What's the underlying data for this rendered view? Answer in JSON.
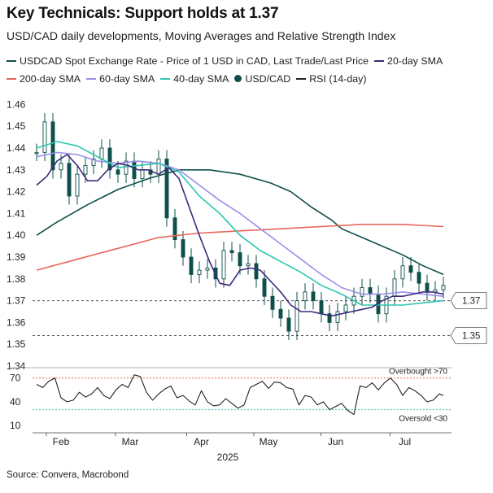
{
  "header": {
    "title": "Key Technicals: Support holds at 1.37",
    "subtitle": "USD/CAD daily developments, Moving Averages and Relative Strength Index"
  },
  "legend": [
    {
      "label": "USDCAD Spot Exchange Rate - Price of 1 USD in CAD, Last Trade/Last Price",
      "color": "#0f4f4b",
      "kind": "line"
    },
    {
      "label": "20-day SMA",
      "color": "#3b2a7a",
      "kind": "line"
    },
    {
      "label": "200-day SMA",
      "color": "#e8665a",
      "kind": "line"
    },
    {
      "label": "60-day SMA",
      "color": "#9b8fe8",
      "kind": "line"
    },
    {
      "label": "40-day SMA",
      "color": "#2cc6b0",
      "kind": "line"
    },
    {
      "label": "USD/CAD",
      "color": "#0f4f4b",
      "kind": "candle"
    },
    {
      "label": "RSI (14-day)",
      "color": "#222222",
      "kind": "line"
    }
  ],
  "source": "Source: Convera, Macrobond",
  "chart_data": [
    {
      "type": "line",
      "x_ticks": [
        "Feb",
        "Mar",
        "Apr",
        "May",
        "Jun",
        "Jul"
      ],
      "x_label": "2025",
      "ylim": [
        1.34,
        1.465
      ],
      "y_ticks": [
        "1.34",
        "1.35",
        "1.36",
        "1.37",
        "1.38",
        "1.39",
        "1.40",
        "1.41",
        "1.42",
        "1.43",
        "1.44",
        "1.45",
        "1.46"
      ],
      "reference_lines": [
        {
          "value": 1.37,
          "label": "1.37"
        },
        {
          "value": 1.354,
          "label": "1.35"
        }
      ],
      "series": [
        {
          "name": "USDCAD Spot Exchange Rate - Price of 1 USD in CAD, Last Trade/Last Price",
          "key": "spot",
          "color": "#0f4f4b",
          "x": [
            0,
            10,
            25,
            40,
            55,
            70,
            85,
            100,
            115,
            125,
            135,
            145,
            150,
            160,
            170,
            180,
            190,
            200
          ],
          "y": [
            1.4,
            1.406,
            1.414,
            1.421,
            1.426,
            1.43,
            1.43,
            1.428,
            1.424,
            1.42,
            1.413,
            1.407,
            1.403,
            1.399,
            1.395,
            1.391,
            1.386,
            1.382
          ]
        },
        {
          "name": "200-day SMA",
          "key": "sma200",
          "color": "#e8665a",
          "x": [
            0,
            20,
            40,
            60,
            80,
            100,
            120,
            140,
            160,
            180,
            200
          ],
          "y": [
            1.384,
            1.389,
            1.394,
            1.399,
            1.401,
            1.402,
            1.403,
            1.404,
            1.405,
            1.405,
            1.404
          ]
        },
        {
          "name": "60-day SMA",
          "key": "sma60",
          "color": "#9b8fe8",
          "x": [
            0,
            10,
            20,
            30,
            40,
            50,
            60,
            70,
            80,
            90,
            100,
            110,
            120,
            130,
            140,
            150,
            160,
            170,
            180,
            190,
            200
          ],
          "y": [
            1.436,
            1.438,
            1.437,
            1.434,
            1.433,
            1.434,
            1.433,
            1.43,
            1.423,
            1.416,
            1.41,
            1.403,
            1.396,
            1.389,
            1.382,
            1.376,
            1.373,
            1.373,
            1.374,
            1.373,
            1.372
          ]
        },
        {
          "name": "40-day SMA",
          "key": "sma40",
          "color": "#2cc6b0",
          "x": [
            0,
            10,
            20,
            30,
            40,
            50,
            60,
            70,
            80,
            90,
            100,
            110,
            120,
            130,
            140,
            150,
            160,
            170,
            180,
            190,
            200
          ],
          "y": [
            1.44,
            1.443,
            1.441,
            1.436,
            1.431,
            1.432,
            1.433,
            1.429,
            1.418,
            1.41,
            1.4,
            1.393,
            1.388,
            1.383,
            1.377,
            1.373,
            1.368,
            1.368,
            1.368,
            1.369,
            1.37
          ]
        },
        {
          "name": "20-day SMA",
          "key": "sma20",
          "color": "#3b2a7a",
          "x": [
            0,
            5,
            10,
            15,
            20,
            25,
            30,
            35,
            40,
            45,
            50,
            55,
            60,
            65,
            70,
            75,
            80,
            85,
            90,
            95,
            100,
            105,
            110,
            115,
            120,
            125,
            130,
            135,
            140,
            145,
            150,
            155,
            160,
            165,
            170,
            175,
            180,
            185,
            190,
            195,
            200
          ],
          "y": [
            1.423,
            1.427,
            1.434,
            1.437,
            1.432,
            1.425,
            1.425,
            1.43,
            1.433,
            1.432,
            1.43,
            1.43,
            1.428,
            1.431,
            1.426,
            1.413,
            1.4,
            1.388,
            1.378,
            1.377,
            1.384,
            1.385,
            1.384,
            1.379,
            1.374,
            1.368,
            1.365,
            1.365,
            1.364,
            1.363,
            1.364,
            1.365,
            1.366,
            1.367,
            1.37,
            1.372,
            1.372,
            1.373,
            1.374,
            1.374,
            1.373
          ]
        },
        {
          "name": "USD/CAD",
          "key": "candles",
          "color": "#0f4f4b",
          "kind": "candle",
          "x": [
            0,
            4,
            8,
            12,
            16,
            20,
            24,
            28,
            32,
            36,
            40,
            44,
            48,
            52,
            56,
            60,
            64,
            68,
            72,
            76,
            80,
            84,
            88,
            92,
            96,
            100,
            104,
            108,
            112,
            116,
            120,
            124,
            128,
            132,
            136,
            140,
            144,
            148,
            152,
            156,
            160,
            164,
            168,
            172,
            176,
            180,
            184,
            188,
            192,
            196,
            200
          ],
          "y": [
            1.438,
            1.452,
            1.43,
            1.433,
            1.418,
            1.428,
            1.432,
            1.435,
            1.44,
            1.43,
            1.428,
            1.434,
            1.426,
            1.43,
            1.428,
            1.435,
            1.408,
            1.398,
            1.39,
            1.382,
            1.384,
            1.385,
            1.38,
            1.393,
            1.392,
            1.386,
            1.387,
            1.38,
            1.372,
            1.366,
            1.362,
            1.356,
            1.37,
            1.374,
            1.37,
            1.364,
            1.36,
            1.365,
            1.368,
            1.372,
            1.376,
            1.373,
            1.364,
            1.372,
            1.38,
            1.386,
            1.383,
            1.378,
            1.374,
            1.375,
            1.377
          ]
        }
      ]
    },
    {
      "type": "line",
      "ylim": [
        8,
        80
      ],
      "y_ticks": [
        "10",
        "40",
        "70"
      ],
      "reference_lines": [
        {
          "value": 70,
          "label": "Overbought >70",
          "color": "#e8665a"
        },
        {
          "value": 30,
          "label": "Oversold <30",
          "color": "#2cc6b0"
        }
      ],
      "series": [
        {
          "name": "RSI (14-day)",
          "key": "rsi",
          "color": "#222222",
          "x": [
            0,
            3,
            6,
            9,
            12,
            15,
            18,
            21,
            24,
            27,
            30,
            33,
            36,
            39,
            42,
            45,
            48,
            51,
            54,
            57,
            60,
            63,
            66,
            69,
            72,
            75,
            78,
            81,
            84,
            87,
            90,
            93,
            96,
            99,
            102,
            105,
            108,
            111,
            114,
            117,
            120,
            123,
            126,
            129,
            132,
            135,
            138,
            141,
            144,
            147,
            150,
            153,
            156,
            159,
            162,
            165,
            168,
            171,
            174,
            177,
            180,
            183,
            186,
            189,
            192,
            195,
            198,
            200
          ],
          "y": [
            62,
            58,
            66,
            70,
            45,
            40,
            42,
            52,
            46,
            50,
            58,
            48,
            44,
            55,
            62,
            58,
            74,
            72,
            52,
            42,
            50,
            56,
            60,
            45,
            48,
            41,
            36,
            54,
            40,
            35,
            36,
            44,
            38,
            32,
            36,
            58,
            62,
            66,
            57,
            65,
            64,
            58,
            56,
            36,
            48,
            46,
            36,
            40,
            30,
            34,
            38,
            29,
            24,
            60,
            58,
            64,
            55,
            64,
            70,
            62,
            48,
            58,
            54,
            48,
            40,
            42,
            50,
            48
          ]
        }
      ]
    }
  ]
}
